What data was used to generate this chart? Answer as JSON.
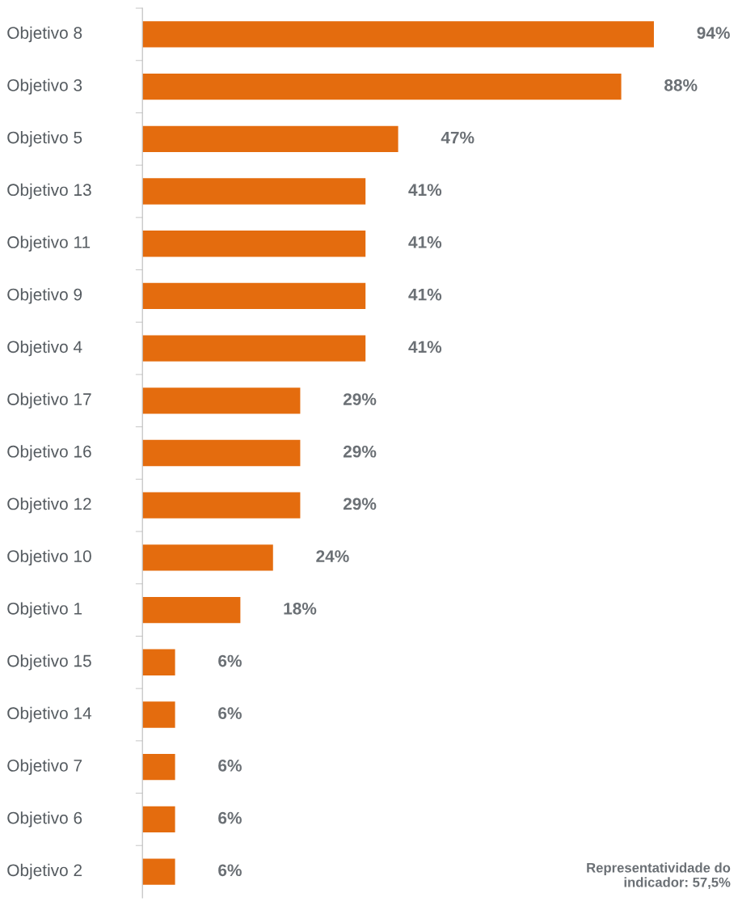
{
  "chart_data": {
    "type": "bar",
    "orientation": "horizontal",
    "categories": [
      "Objetivo 8",
      "Objetivo 3",
      "Objetivo 5",
      "Objetivo 13",
      "Objetivo 11",
      "Objetivo 9",
      "Objetivo 4",
      "Objetivo 17",
      "Objetivo 16",
      "Objetivo 12",
      "Objetivo 10",
      "Objetivo 1",
      "Objetivo 15",
      "Objetivo 14",
      "Objetivo 7",
      "Objetivo 6",
      "Objetivo 2"
    ],
    "values": [
      94,
      88,
      47,
      41,
      41,
      41,
      41,
      29,
      29,
      29,
      24,
      18,
      6,
      6,
      6,
      6,
      6
    ],
    "value_labels": [
      "94%",
      "88%",
      "47%",
      "41%",
      "41%",
      "41%",
      "41%",
      "29%",
      "29%",
      "29%",
      "24%",
      "18%",
      "6%",
      "6%",
      "6%",
      "6%",
      "6%"
    ],
    "color": "#e46c0e",
    "grid": false,
    "legend": false,
    "annotations": [
      "Representatividade do\nindicador: 57,5%"
    ]
  }
}
